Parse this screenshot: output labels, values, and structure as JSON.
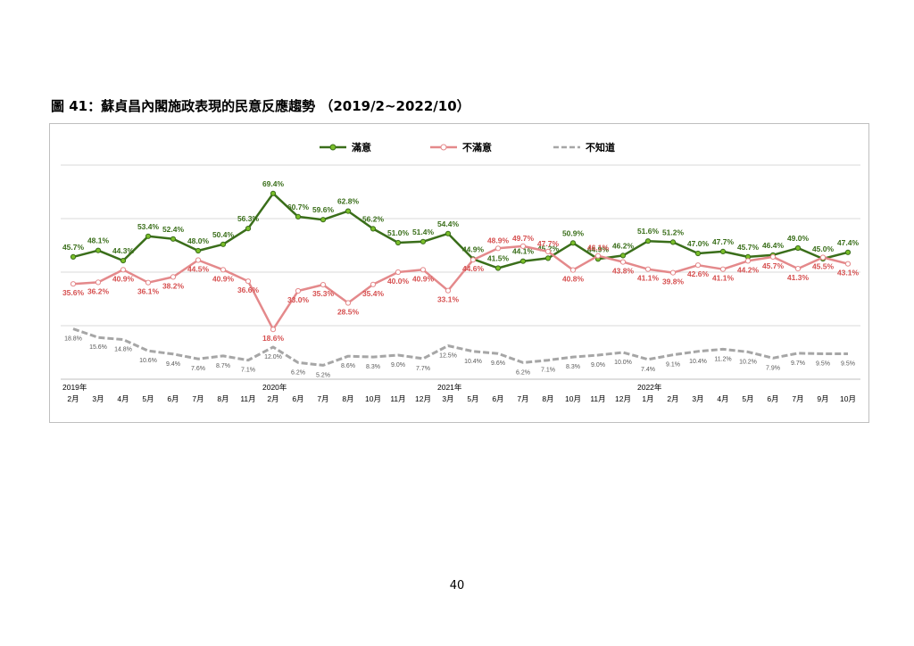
{
  "document": {
    "figure_title": "圖 41：蘇貞昌內閣施政表現的民意反應趨勢 （2019/2~2022/10）",
    "page_number": "40"
  },
  "colors": {
    "satisfied": "#3a6e1a",
    "satisfied_marker_fill": "#7bbf2a",
    "dissatisfied": "#e4898b",
    "dissatisfied_label": "#d65050",
    "unknown": "#a6a6a6",
    "unknown_label": "#595959",
    "grid": "#d9d9d9"
  },
  "chart_data": {
    "type": "line",
    "title": "",
    "xlabel": "",
    "ylabel": "",
    "ylim": [
      0,
      80
    ],
    "grid": "horizontal",
    "legend_position": "top",
    "categories": [
      "2月",
      "3月",
      "4月",
      "5月",
      "6月",
      "7月",
      "8月",
      "11月",
      "2月",
      "6月",
      "7月",
      "8月",
      "10月",
      "11月",
      "12月",
      "3月",
      "5月",
      "6月",
      "7月",
      "8月",
      "10月",
      "11月",
      "12月",
      "1月",
      "2月",
      "3月",
      "4月",
      "5月",
      "6月",
      "7月",
      "9月",
      "10月"
    ],
    "year_labels": [
      {
        "index": 0,
        "label": "2019年"
      },
      {
        "index": 8,
        "label": "2020年"
      },
      {
        "index": 15,
        "label": "2021年"
      },
      {
        "index": 23,
        "label": "2022年"
      }
    ],
    "series": [
      {
        "name": "滿意",
        "values": [
          45.7,
          48.1,
          44.3,
          53.4,
          52.4,
          48.0,
          50.4,
          56.3,
          69.4,
          60.7,
          59.6,
          62.8,
          56.2,
          51.0,
          51.4,
          54.4,
          44.9,
          41.5,
          44.1,
          45.2,
          50.9,
          44.9,
          46.2,
          51.6,
          51.2,
          47.0,
          47.7,
          45.7,
          46.4,
          49.0,
          45.0,
          47.4
        ],
        "labels": [
          "45.7%",
          "48.1%",
          "44.3%",
          "53.4%",
          "52.4%",
          "48.0%",
          "50.4%",
          "56.3%",
          "69.4%",
          "60.7%",
          "59.6%",
          "62.8%",
          "56.2%",
          "51.0%",
          "51.4%",
          "54.4%",
          "44.9%",
          "41.5%",
          "44.1%",
          "45.2%",
          "50.9%",
          "44.9%",
          "46.2%",
          "51.6%",
          "51.2%",
          "47.0%",
          "47.7%",
          "45.7%",
          "46.4%",
          "49.0%",
          "45.0%",
          "47.4%"
        ]
      },
      {
        "name": "不滿意",
        "values": [
          35.6,
          36.2,
          40.9,
          36.1,
          38.2,
          44.5,
          40.9,
          36.6,
          18.6,
          33.0,
          35.3,
          28.5,
          35.4,
          40.0,
          40.9,
          33.1,
          44.6,
          48.9,
          49.7,
          47.7,
          40.8,
          46.1,
          43.8,
          41.1,
          39.8,
          42.6,
          41.1,
          44.2,
          45.7,
          41.3,
          45.5,
          43.1
        ],
        "labels": [
          "35.6%",
          "36.2%",
          "40.9%",
          "36.1%",
          "38.2%",
          "44.5%",
          "40.9%",
          "36.6%",
          "18.6%",
          "33.0%",
          "35.3%",
          "28.5%",
          "35.4%",
          "40.0%",
          "40.9%",
          "33.1%",
          "44.6%",
          "48.9%",
          "49.7%",
          "47.7%",
          "40.8%",
          "46.1%",
          "43.8%",
          "41.1%",
          "39.8%",
          "42.6%",
          "41.1%",
          "44.2%",
          "45.7%",
          "41.3%",
          "45.5%",
          "43.1%"
        ]
      },
      {
        "name": "不知道",
        "values": [
          18.8,
          15.6,
          14.8,
          10.6,
          9.4,
          7.6,
          8.7,
          7.1,
          12.0,
          6.2,
          5.2,
          8.6,
          8.3,
          9.0,
          7.7,
          12.5,
          10.4,
          9.6,
          6.2,
          7.1,
          8.3,
          9.0,
          10.0,
          7.4,
          9.1,
          10.4,
          11.2,
          10.2,
          7.9,
          9.7,
          9.5,
          9.5
        ],
        "labels": [
          "18.8%",
          "15.6%",
          "14.8%",
          "10.6%",
          "9.4%",
          "7.6%",
          "8.7%",
          "7.1%",
          "12.0%",
          "6.2%",
          "5.2%",
          "8.6%",
          "8.3%",
          "9.0%",
          "7.7%",
          "12.5%",
          "10.4%",
          "9.6%",
          "6.2%",
          "7.1%",
          "8.3%",
          "9.0%",
          "10.0%",
          "7.4%",
          "9.1%",
          "10.4%",
          "11.2%",
          "10.2%",
          "7.9%",
          "9.7%",
          "9.5%",
          "9.5%"
        ]
      }
    ]
  }
}
